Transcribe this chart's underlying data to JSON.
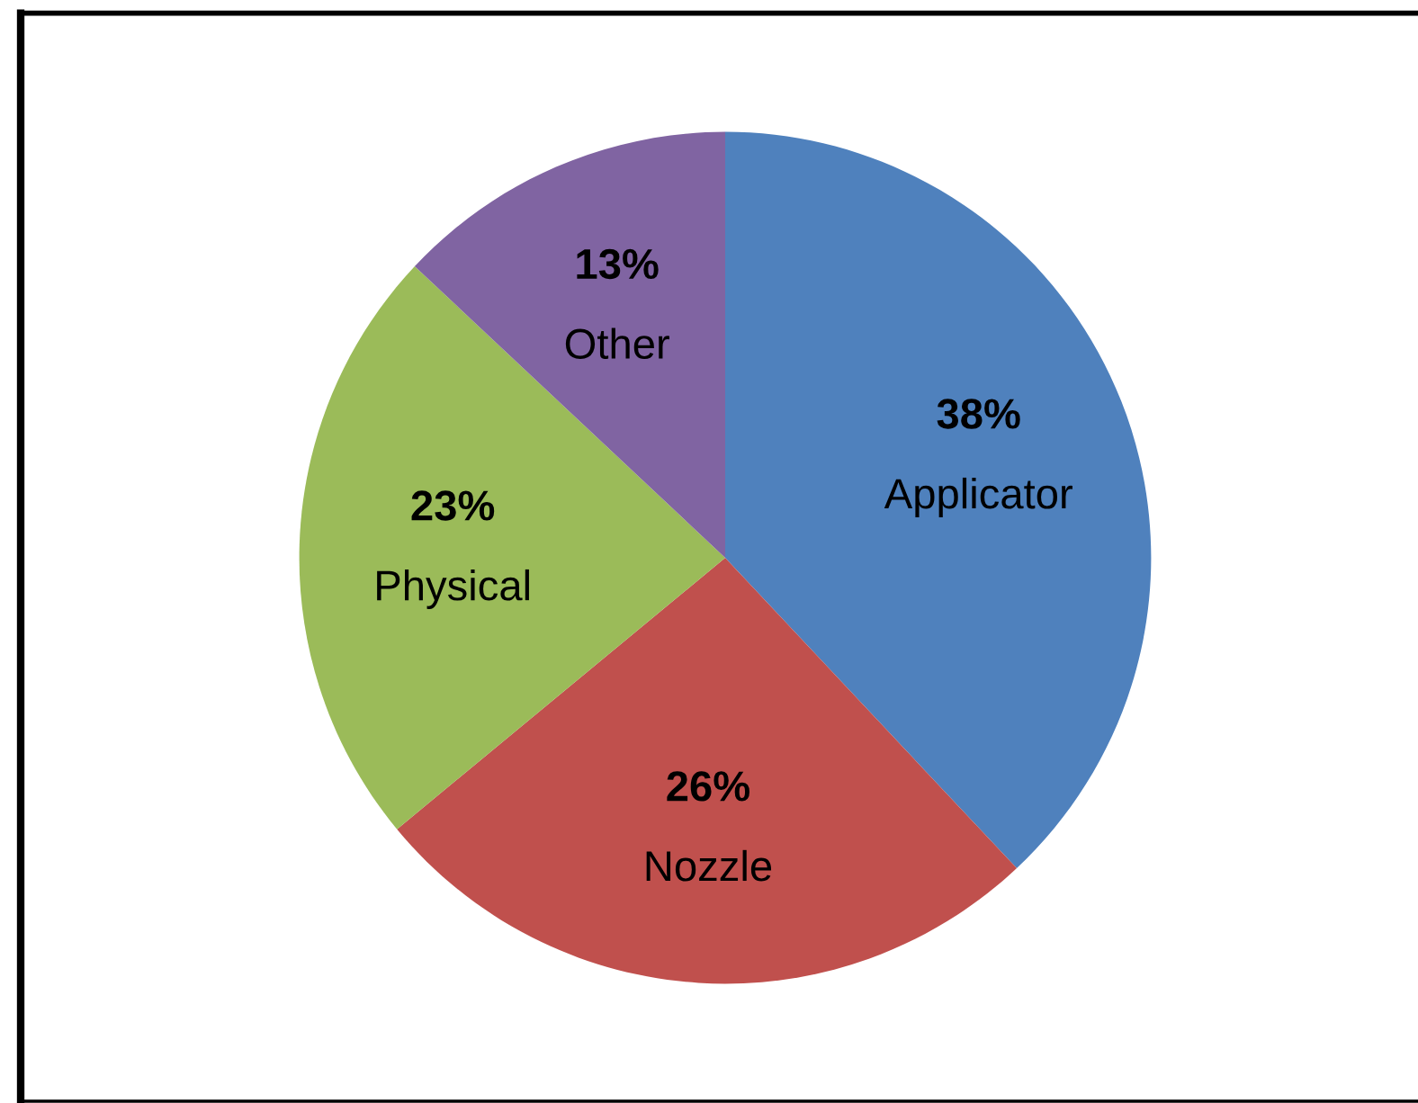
{
  "chart_data": {
    "type": "pie",
    "categories": [
      "Applicator",
      "Nozzle",
      "Physical",
      "Other"
    ],
    "values": [
      38,
      26,
      23,
      13
    ],
    "colors": [
      "#4f81bd",
      "#c0504d",
      "#9bbb59",
      "#8064a2"
    ],
    "value_labels": [
      "38%",
      "26%",
      "23%",
      "13%"
    ]
  }
}
